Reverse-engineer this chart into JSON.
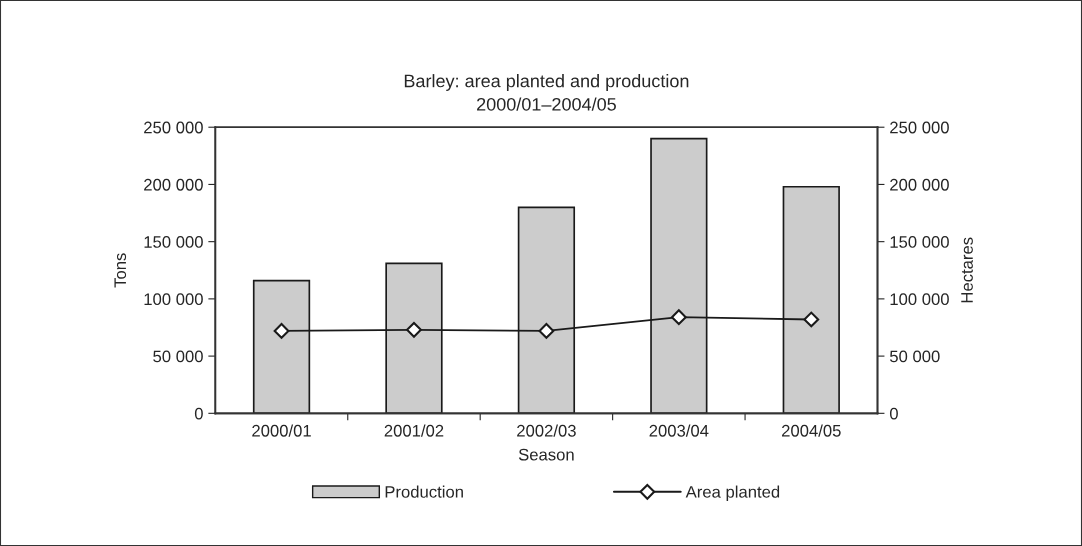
{
  "chart_data": {
    "type": "bar",
    "title": "Barley: area planted and production\n2000/01–2004/05",
    "xlabel": "Season",
    "ylabel": "Tons",
    "y2label": "Hectares",
    "categories": [
      "2000/01",
      "2001/02",
      "2002/03",
      "2003/04",
      "2004/05"
    ],
    "series": [
      {
        "name": "Production",
        "color": "#cccccc",
        "values": [
          116000,
          131000,
          180000,
          240000,
          198000
        ]
      },
      {
        "name": "Area planted",
        "type": "line",
        "axis": "y2",
        "color": "#1a1a1a",
        "marker": "diamond",
        "values": [
          72000,
          73000,
          72000,
          84000,
          82000
        ]
      }
    ],
    "ylim": [
      0,
      250000
    ],
    "yticks": [
      {
        "value": 0,
        "label": "0"
      },
      {
        "value": 50000,
        "label": "50 000"
      },
      {
        "value": 100000,
        "label": "100 000"
      },
      {
        "value": 150000,
        "label": "150 000"
      },
      {
        "value": 200000,
        "label": "200 000"
      },
      {
        "value": 250000,
        "label": "250 000"
      }
    ],
    "y2lim": [
      0,
      250000
    ],
    "y2ticks": [
      {
        "value": 0,
        "label": "0"
      },
      {
        "value": 50000,
        "label": "50 000"
      },
      {
        "value": 100000,
        "label": "100 000"
      },
      {
        "value": 150000,
        "label": "150 000"
      },
      {
        "value": 200000,
        "label": "200 000"
      },
      {
        "value": 250000,
        "label": "250 000"
      }
    ],
    "grid": false,
    "legend": "bottom"
  }
}
